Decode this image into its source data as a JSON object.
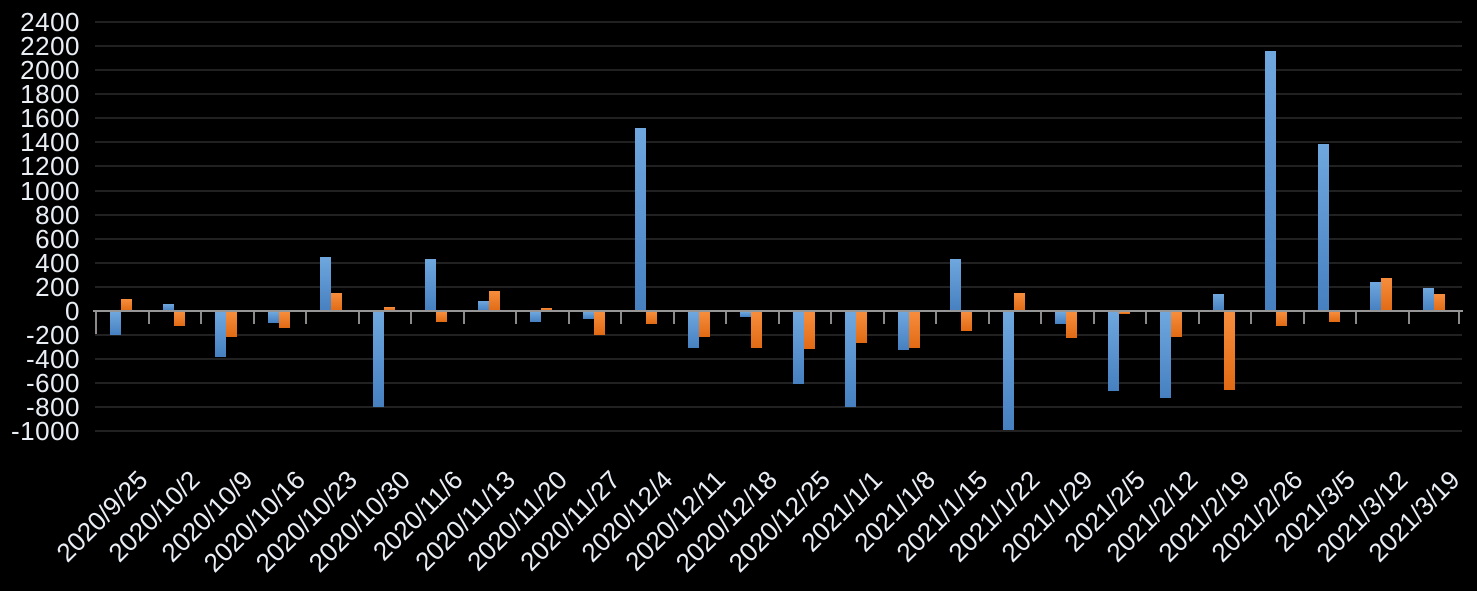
{
  "chart_data": {
    "type": "bar",
    "title": "",
    "legend": "none",
    "grid": true,
    "background": "#000000",
    "gridline_color": "#212121",
    "axis_line_color": "#969696",
    "label_color": "#E9EDF4",
    "ylim": [
      -1000,
      2400
    ],
    "ytick_step": 200,
    "categories": [
      "2020/9/25",
      "2020/10/2",
      "2020/10/9",
      "2020/10/16",
      "2020/10/23",
      "2020/10/30",
      "2020/11/6",
      "2020/11/13",
      "2020/11/20",
      "2020/11/27",
      "2020/12/4",
      "2020/12/11",
      "2020/12/18",
      "2020/12/25",
      "2021/1/1",
      "2021/1/8",
      "2021/1/15",
      "2021/1/22",
      "2021/1/29",
      "2021/2/5",
      "2021/2/12",
      "2021/2/19",
      "2021/2/26",
      "2021/3/5",
      "2021/3/12",
      "2021/3/19"
    ],
    "series": [
      {
        "name": "blue",
        "color": "#5B9BD5",
        "gradient_top": "#6FA7DE",
        "gradient_bottom": "#4680C0",
        "values": [
          -190,
          55,
          -375,
          -95,
          445,
          -785,
          435,
          85,
          -80,
          -60,
          1520,
          -300,
          -45,
          -600,
          -790,
          -315,
          435,
          -980,
          -100,
          -660,
          -715,
          140,
          2160,
          1390,
          240,
          190
        ]
      },
      {
        "name": "orange",
        "color": "#ED7D31",
        "gradient_top": "#F78E3D",
        "gradient_bottom": "#E16A14",
        "values": [
          100,
          -115,
          -205,
          -130,
          150,
          30,
          -85,
          165,
          25,
          -195,
          -100,
          -210,
          -295,
          -305,
          -260,
          -295,
          -160,
          150,
          -220,
          -20,
          -205,
          -645,
          -115,
          -80,
          270,
          140
        ]
      }
    ]
  }
}
